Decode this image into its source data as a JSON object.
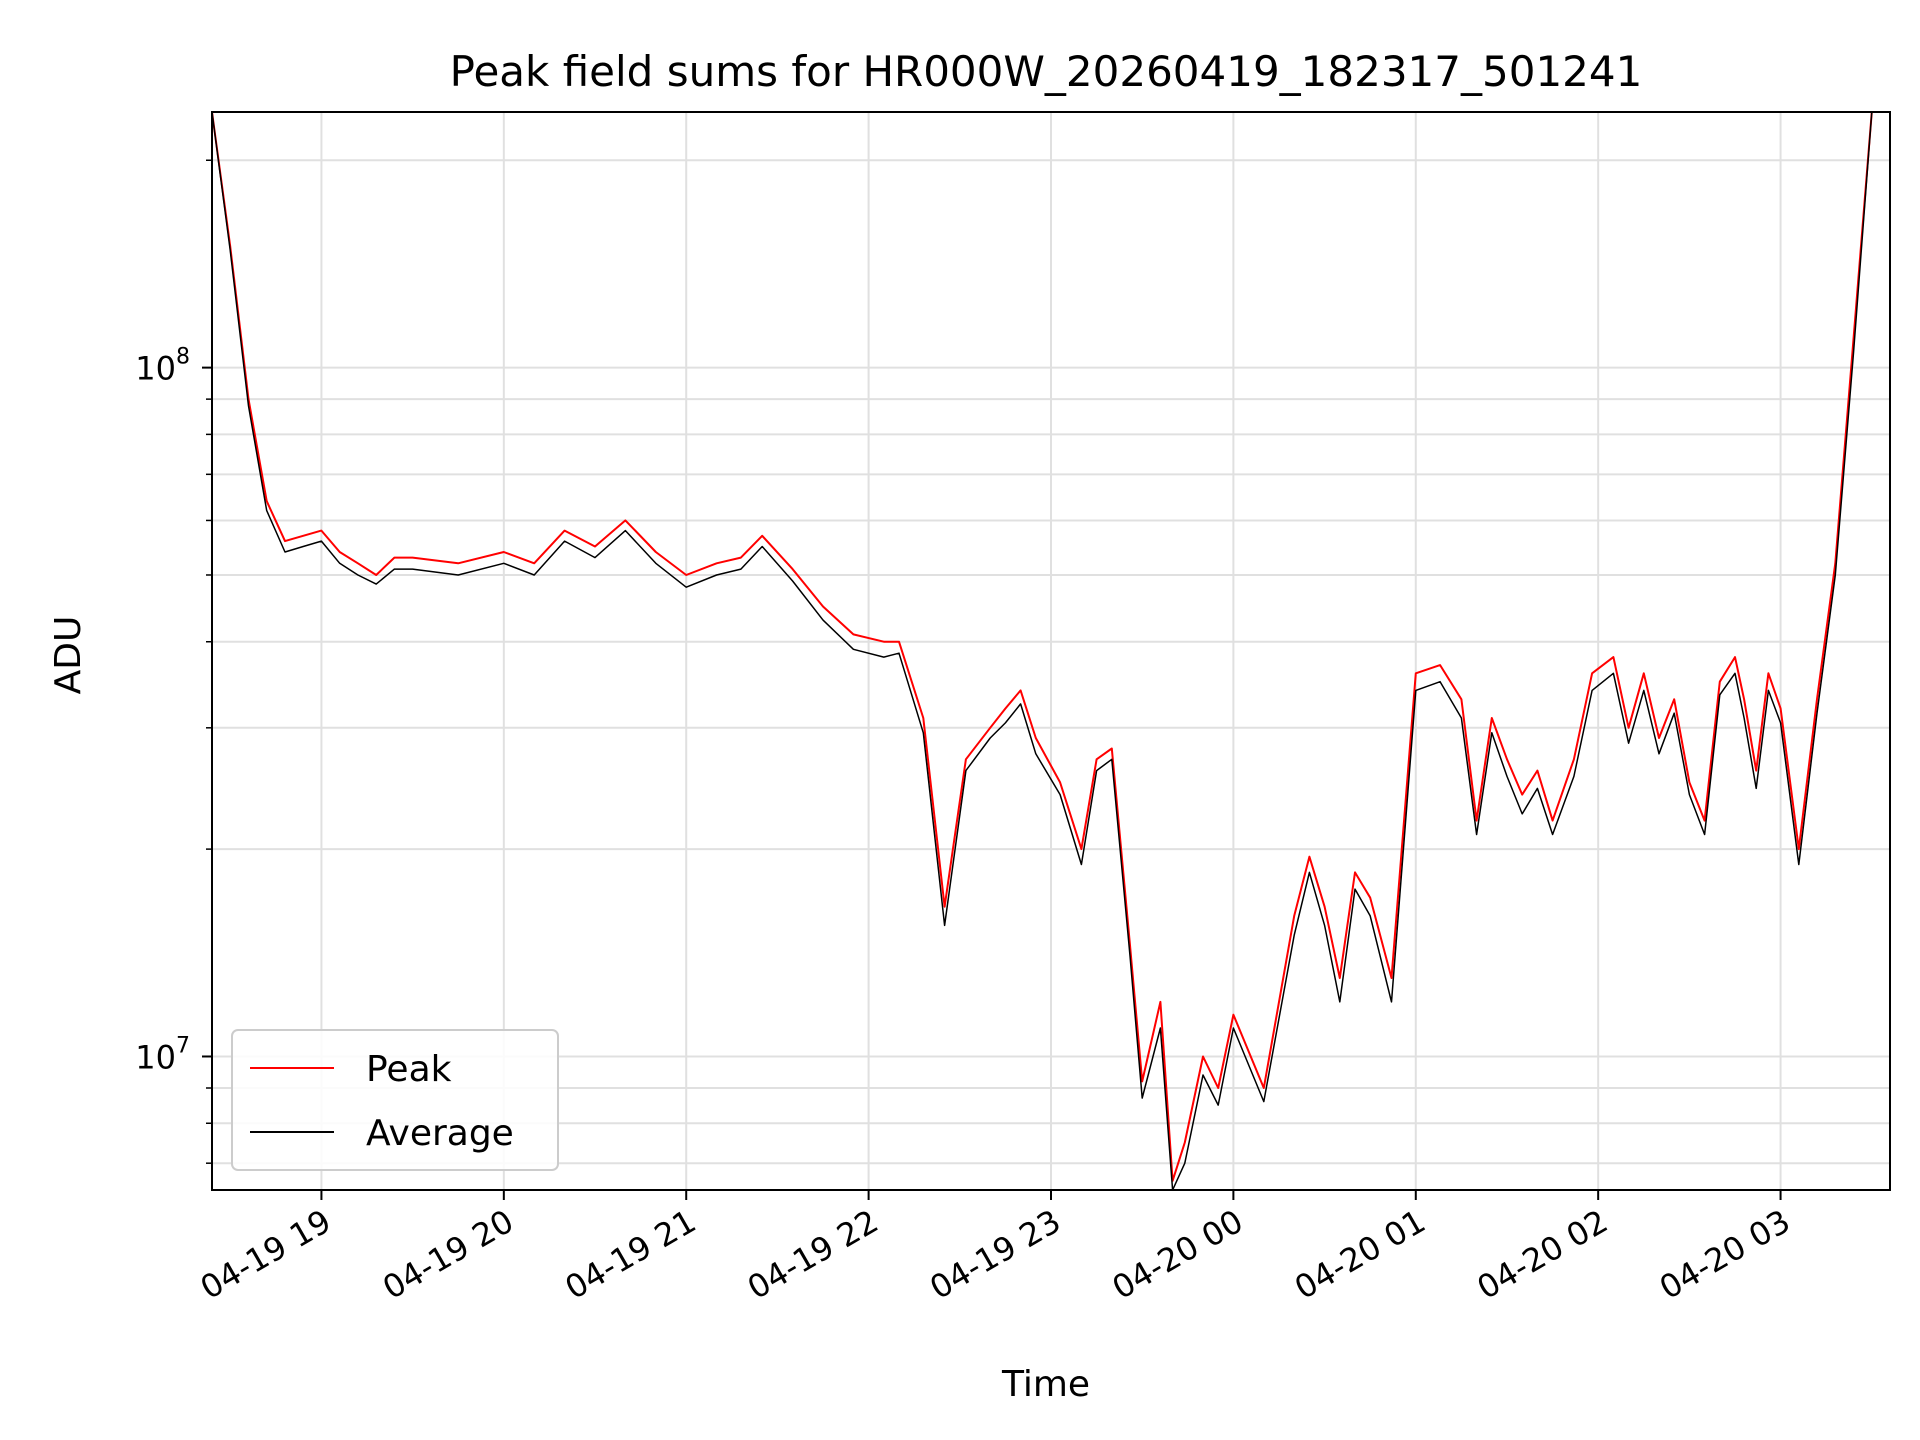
{
  "chart_data": {
    "type": "line",
    "title": "Peak field sums for HR000W_20260419_182317_501241",
    "xlabel": "Time",
    "ylabel": "ADU",
    "xlim": [
      "04-19 18:24",
      "04-20 03:36"
    ],
    "ylim": [
      6400000,
      235000000
    ],
    "yscale": "log",
    "grid": true,
    "legend_position": "lower-left",
    "x_ticks": [
      "04-19 19",
      "04-19 20",
      "04-19 21",
      "04-19 22",
      "04-19 23",
      "04-20 00",
      "04-20 01",
      "04-20 02",
      "04-20 03"
    ],
    "y_ticks": [
      {
        "base": "10",
        "exp": "7",
        "value": 10000000
      },
      {
        "base": "10",
        "exp": "8",
        "value": 100000000
      }
    ],
    "x": [
      "04-19 18:24",
      "04-19 18:30",
      "04-19 18:36",
      "04-19 18:42",
      "04-19 18:48",
      "04-19 18:54",
      "04-19 19:00",
      "04-19 19:06",
      "04-19 19:12",
      "04-19 19:18",
      "04-19 19:24",
      "04-19 19:30",
      "04-19 19:45",
      "04-19 20:00",
      "04-19 20:10",
      "04-19 20:20",
      "04-19 20:30",
      "04-19 20:40",
      "04-19 20:50",
      "04-19 21:00",
      "04-19 21:10",
      "04-19 21:18",
      "04-19 21:25",
      "04-19 21:35",
      "04-19 21:45",
      "04-19 21:55",
      "04-19 22:05",
      "04-19 22:10",
      "04-19 22:18",
      "04-19 22:25",
      "04-19 22:32",
      "04-19 22:40",
      "04-19 22:45",
      "04-19 22:50",
      "04-19 22:55",
      "04-19 23:03",
      "04-19 23:10",
      "04-19 23:15",
      "04-19 23:20",
      "04-19 23:26",
      "04-19 23:30",
      "04-19 23:36",
      "04-19 23:40",
      "04-19 23:44",
      "04-19 23:50",
      "04-19 23:55",
      "04-20 00:00",
      "04-20 00:10",
      "04-20 00:20",
      "04-20 00:25",
      "04-20 00:30",
      "04-20 00:35",
      "04-20 00:40",
      "04-20 00:45",
      "04-20 00:52",
      "04-20 01:00",
      "04-20 01:08",
      "04-20 01:15",
      "04-20 01:20",
      "04-20 01:25",
      "04-20 01:30",
      "04-20 01:35",
      "04-20 01:40",
      "04-20 01:45",
      "04-20 01:52",
      "04-20 01:58",
      "04-20 02:05",
      "04-20 02:10",
      "04-20 02:15",
      "04-20 02:20",
      "04-20 02:25",
      "04-20 02:30",
      "04-20 02:35",
      "04-20 02:40",
      "04-20 02:45",
      "04-20 02:48",
      "04-20 02:52",
      "04-20 02:56",
      "04-20 03:00",
      "04-20 03:06",
      "04-20 03:12",
      "04-20 03:18",
      "04-20 03:24",
      "04-20 03:30"
    ],
    "series": [
      {
        "name": "Peak",
        "color": "#ff0000",
        "values": [
          235000000,
          150000000,
          90000000,
          64000000,
          56000000,
          57000000,
          58000000,
          54000000,
          52000000,
          50000000,
          53000000,
          53000000,
          52000000,
          54000000,
          52000000,
          58000000,
          55000000,
          60000000,
          54000000,
          50000000,
          52000000,
          53000000,
          57000000,
          51000000,
          45000000,
          41000000,
          40000000,
          40000000,
          31000000,
          16500000,
          27000000,
          30000000,
          32000000,
          34000000,
          29000000,
          25000000,
          20000000,
          27000000,
          28000000,
          14500000,
          9200000,
          12000000,
          6600000,
          7500000,
          10000000,
          9000000,
          11500000,
          9000000,
          16000000,
          19500000,
          16500000,
          13000000,
          18500000,
          17000000,
          13000000,
          36000000,
          37000000,
          33000000,
          22000000,
          31000000,
          27000000,
          24000000,
          26000000,
          22000000,
          27000000,
          36000000,
          38000000,
          30000000,
          36000000,
          29000000,
          33000000,
          25000000,
          22000000,
          35000000,
          38000000,
          33000000,
          26000000,
          36000000,
          32000000,
          20000000,
          33000000,
          52000000,
          110000000,
          235000000
        ]
      },
      {
        "name": "Average",
        "color": "#000000",
        "values": [
          235000000,
          148000000,
          88000000,
          62000000,
          54000000,
          55000000,
          56000000,
          52000000,
          50000000,
          48500000,
          51000000,
          51000000,
          50000000,
          52000000,
          50000000,
          56000000,
          53000000,
          58000000,
          52000000,
          48000000,
          50000000,
          51000000,
          55000000,
          49000000,
          43000000,
          39000000,
          38000000,
          38500000,
          29500000,
          15500000,
          26000000,
          29000000,
          30500000,
          32500000,
          27500000,
          24000000,
          19000000,
          26000000,
          27000000,
          14000000,
          8700000,
          11000000,
          6400000,
          7000000,
          9400000,
          8500000,
          11000000,
          8600000,
          15000000,
          18500000,
          15500000,
          12000000,
          17500000,
          16000000,
          12000000,
          34000000,
          35000000,
          31000000,
          21000000,
          29500000,
          25500000,
          22500000,
          24500000,
          21000000,
          25500000,
          34000000,
          36000000,
          28500000,
          34000000,
          27500000,
          31500000,
          24000000,
          21000000,
          33500000,
          36000000,
          31000000,
          24500000,
          34000000,
          30500000,
          19000000,
          31500000,
          50000000,
          105000000,
          235000000
        ]
      }
    ]
  }
}
